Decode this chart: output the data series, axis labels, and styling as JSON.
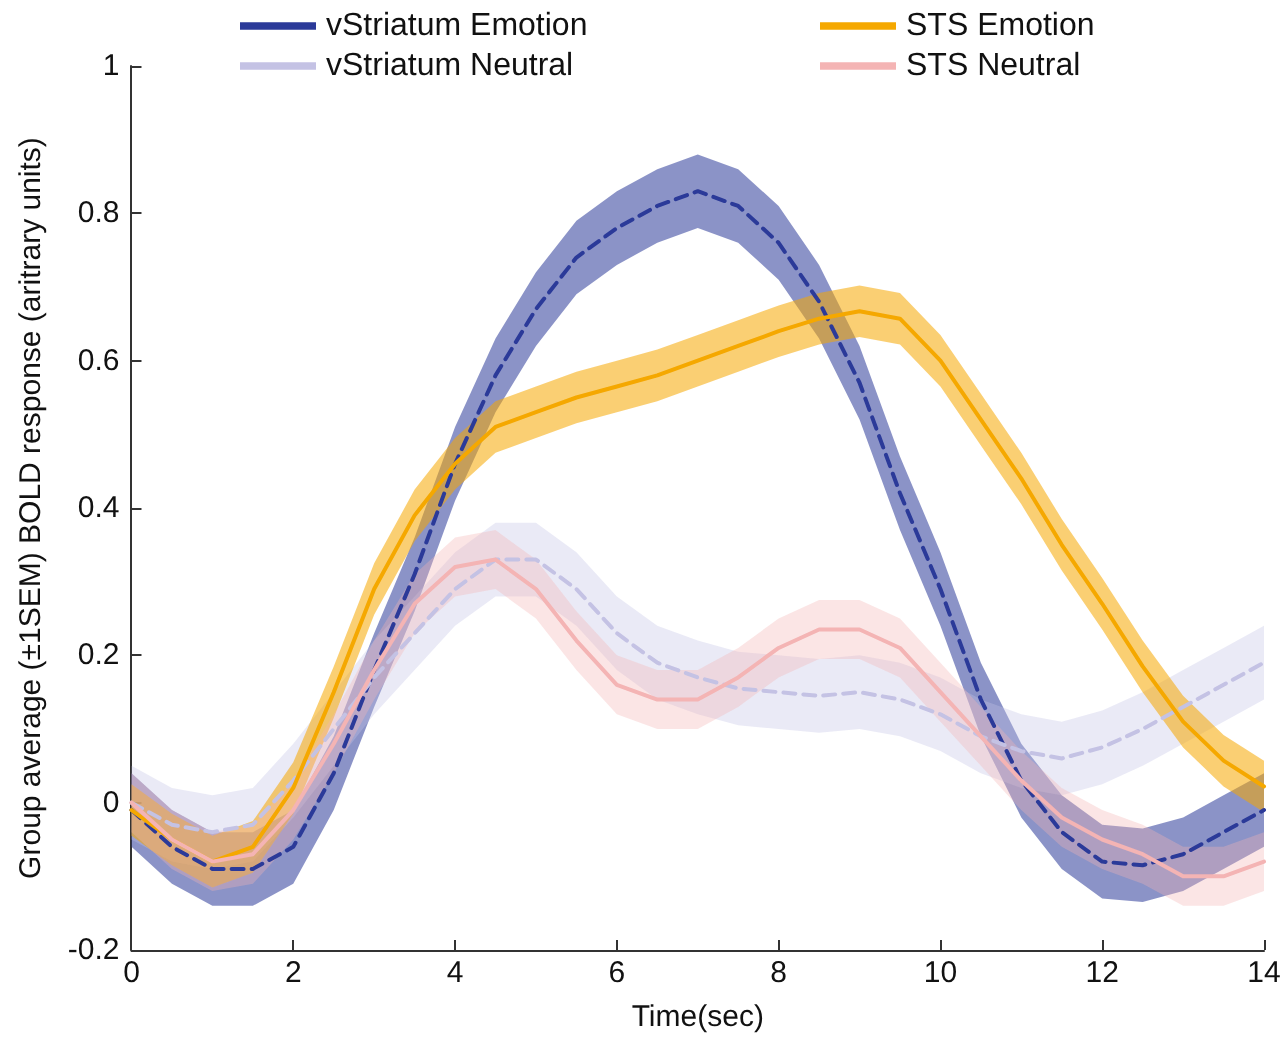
{
  "chart_data": {
    "type": "line",
    "xlabel": "Time(sec)",
    "ylabel": "Group average (±1SEM) BOLD response (aritrary units)",
    "x": [
      0,
      0.5,
      1,
      1.5,
      2,
      2.5,
      3,
      3.5,
      4,
      4.5,
      5,
      5.5,
      6,
      6.5,
      7,
      7.5,
      8,
      8.5,
      9,
      9.5,
      10,
      10.5,
      11,
      11.5,
      12,
      12.5,
      13,
      13.5,
      14
    ],
    "xlim": [
      0,
      14
    ],
    "xticks": [
      0,
      2,
      4,
      6,
      8,
      10,
      12,
      14
    ],
    "ylim": [
      -0.2,
      1
    ],
    "yticks": [
      -0.2,
      0,
      0.2,
      0.4,
      0.6,
      0.8,
      1
    ],
    "grid": false,
    "legend": "top",
    "marker": "none",
    "series": [
      {
        "name": "vStriatum Emotion",
        "color": "#2b3a99",
        "line_style": "dashed",
        "values": [
          -0.01,
          -0.06,
          -0.09,
          -0.09,
          -0.06,
          0.04,
          0.18,
          0.31,
          0.46,
          0.58,
          0.67,
          0.74,
          0.78,
          0.81,
          0.83,
          0.81,
          0.76,
          0.68,
          0.57,
          0.42,
          0.29,
          0.14,
          0.03,
          -0.04,
          -0.08,
          -0.085,
          -0.07,
          -0.04,
          -0.01
        ],
        "lower": [
          -0.06,
          -0.11,
          -0.14,
          -0.14,
          -0.11,
          -0.01,
          0.13,
          0.26,
          0.41,
          0.53,
          0.62,
          0.69,
          0.73,
          0.76,
          0.78,
          0.76,
          0.71,
          0.63,
          0.52,
          0.37,
          0.24,
          0.09,
          -0.02,
          -0.09,
          -0.13,
          -0.135,
          -0.12,
          -0.09,
          -0.06
        ],
        "upper": [
          0.04,
          -0.01,
          -0.04,
          -0.04,
          -0.01,
          0.09,
          0.23,
          0.36,
          0.51,
          0.63,
          0.72,
          0.79,
          0.83,
          0.86,
          0.88,
          0.86,
          0.81,
          0.73,
          0.62,
          0.47,
          0.34,
          0.19,
          0.08,
          0.01,
          -0.03,
          -0.035,
          -0.02,
          0.01,
          0.04
        ]
      },
      {
        "name": "vStriatum Neutral",
        "color": "#c4c2e4",
        "line_style": "dashed",
        "values": [
          0.0,
          -0.03,
          -0.04,
          -0.03,
          0.03,
          0.1,
          0.17,
          0.23,
          0.29,
          0.33,
          0.33,
          0.29,
          0.23,
          0.19,
          0.17,
          0.155,
          0.15,
          0.145,
          0.15,
          0.14,
          0.12,
          0.09,
          0.07,
          0.06,
          0.075,
          0.1,
          0.13,
          0.16,
          0.19
        ],
        "lower": [
          -0.05,
          -0.08,
          -0.09,
          -0.08,
          -0.02,
          0.05,
          0.12,
          0.18,
          0.24,
          0.28,
          0.28,
          0.24,
          0.18,
          0.14,
          0.12,
          0.105,
          0.1,
          0.095,
          0.1,
          0.09,
          0.07,
          0.04,
          0.02,
          0.01,
          0.025,
          0.05,
          0.08,
          0.11,
          0.14
        ],
        "upper": [
          0.05,
          0.02,
          0.01,
          0.02,
          0.08,
          0.15,
          0.22,
          0.28,
          0.34,
          0.38,
          0.38,
          0.34,
          0.28,
          0.24,
          0.22,
          0.205,
          0.2,
          0.195,
          0.2,
          0.19,
          0.17,
          0.14,
          0.12,
          0.11,
          0.125,
          0.15,
          0.18,
          0.21,
          0.24
        ]
      },
      {
        "name": "STS Emotion",
        "color": "#f5a800",
        "line_style": "solid",
        "values": [
          -0.01,
          -0.05,
          -0.08,
          -0.06,
          0.02,
          0.15,
          0.29,
          0.39,
          0.46,
          0.51,
          0.53,
          0.55,
          0.565,
          0.58,
          0.6,
          0.62,
          0.64,
          0.657,
          0.667,
          0.657,
          0.6,
          0.52,
          0.44,
          0.35,
          0.27,
          0.185,
          0.11,
          0.057,
          0.022
        ],
        "lower": [
          -0.045,
          -0.085,
          -0.115,
          -0.095,
          -0.015,
          0.115,
          0.255,
          0.355,
          0.425,
          0.475,
          0.495,
          0.515,
          0.53,
          0.545,
          0.565,
          0.585,
          0.605,
          0.622,
          0.632,
          0.622,
          0.565,
          0.485,
          0.405,
          0.315,
          0.235,
          0.15,
          0.075,
          0.022,
          -0.013
        ],
        "upper": [
          0.025,
          -0.015,
          -0.045,
          -0.025,
          0.055,
          0.185,
          0.325,
          0.425,
          0.495,
          0.545,
          0.565,
          0.585,
          0.6,
          0.615,
          0.635,
          0.655,
          0.675,
          0.692,
          0.702,
          0.692,
          0.635,
          0.555,
          0.475,
          0.385,
          0.305,
          0.22,
          0.145,
          0.092,
          0.057
        ]
      },
      {
        "name": "STS Neutral",
        "color": "#f4b4b4",
        "line_style": "solid",
        "values": [
          0.0,
          -0.05,
          -0.08,
          -0.07,
          -0.01,
          0.08,
          0.18,
          0.27,
          0.32,
          0.33,
          0.29,
          0.22,
          0.16,
          0.14,
          0.14,
          0.17,
          0.21,
          0.235,
          0.235,
          0.21,
          0.15,
          0.09,
          0.03,
          -0.02,
          -0.05,
          -0.07,
          -0.1,
          -0.1,
          -0.08
        ],
        "lower": [
          -0.04,
          -0.09,
          -0.12,
          -0.11,
          -0.05,
          0.04,
          0.14,
          0.23,
          0.28,
          0.29,
          0.25,
          0.18,
          0.12,
          0.1,
          0.1,
          0.13,
          0.17,
          0.195,
          0.195,
          0.17,
          0.11,
          0.05,
          -0.01,
          -0.06,
          -0.09,
          -0.11,
          -0.14,
          -0.14,
          -0.12
        ],
        "upper": [
          0.04,
          -0.01,
          -0.04,
          -0.03,
          0.03,
          0.12,
          0.22,
          0.31,
          0.36,
          0.37,
          0.33,
          0.26,
          0.2,
          0.18,
          0.18,
          0.21,
          0.25,
          0.275,
          0.275,
          0.25,
          0.19,
          0.13,
          0.07,
          0.02,
          -0.01,
          -0.03,
          -0.06,
          -0.06,
          -0.04
        ]
      }
    ]
  }
}
